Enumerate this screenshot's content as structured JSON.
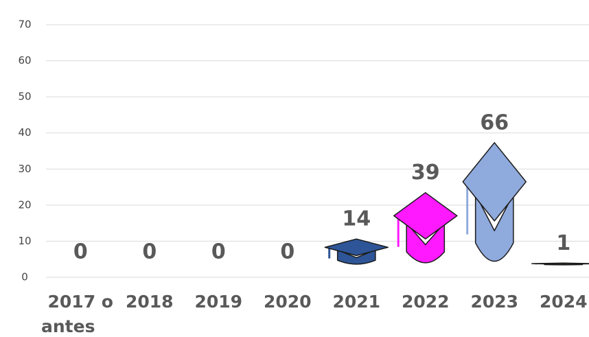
{
  "chart_data": {
    "type": "pictograph",
    "categories": [
      "2017 o antes",
      "2018",
      "2019",
      "2020",
      "2021",
      "2022",
      "2023",
      "2024"
    ],
    "values": [
      0,
      0,
      0,
      0,
      14,
      39,
      66,
      1
    ],
    "colors": [
      "#2e5597",
      "#2e5597",
      "#2e5597",
      "#2e5597",
      "#2e5597",
      "#ff19ff",
      "#8faadc",
      "#70ad47"
    ],
    "ylim": [
      0,
      70
    ],
    "yticks": [
      0,
      10,
      20,
      30,
      40,
      50,
      60,
      70
    ],
    "grid": true
  }
}
